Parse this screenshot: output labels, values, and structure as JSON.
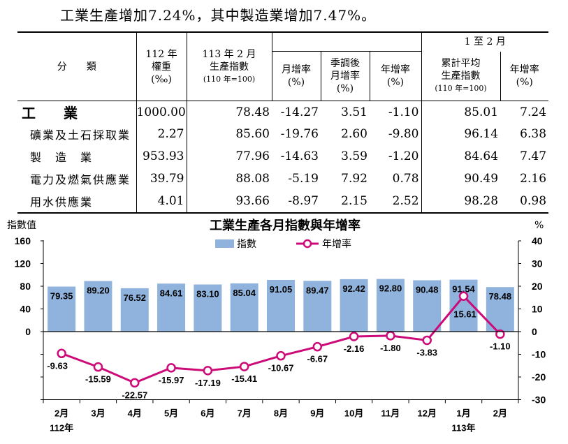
{
  "headline": "工業生產增加7.24%，其中製造業增加7.47%。",
  "table": {
    "header": {
      "category": "分　　類",
      "weight_line1": "112 年",
      "weight_line2": "權重",
      "weight_line3": "(‰)",
      "feb_line1": "113 年 2 月",
      "feb_line2": "生產指數",
      "feb_line3": "(110 年=100)",
      "mom_line1": "月增率",
      "mom_line2": "(%)",
      "sa_line1": "季調後",
      "sa_line2": "月增率",
      "sa_line3": "(%)",
      "yoy_line1": "年增率",
      "yoy_line2": "(%)",
      "cum_line1": "1 至 2 月",
      "cum_line2": "累計平均",
      "cum_line3": "生產指數",
      "cum_line4": "(110 年=100)",
      "cumyoy_line1": "年增率",
      "cumyoy_line2": "(%)"
    },
    "rows": [
      {
        "category": "工　　業",
        "weight": "1000.00",
        "index": "78.48",
        "mom": "-14.27",
        "sa_mom": "3.51",
        "yoy": "-1.10",
        "cum_index": "85.01",
        "cum_yoy": "7.24"
      },
      {
        "category": "礦業及土石採取業",
        "weight": "2.27",
        "index": "85.60",
        "mom": "-19.76",
        "sa_mom": "2.60",
        "yoy": "-9.80",
        "cum_index": "96.14",
        "cum_yoy": "6.38"
      },
      {
        "category": "製　造　業",
        "weight": "953.93",
        "index": "77.96",
        "mom": "-14.63",
        "sa_mom": "3.59",
        "yoy": "-1.20",
        "cum_index": "84.64",
        "cum_yoy": "7.47"
      },
      {
        "category": "電力及燃氣供應業",
        "weight": "39.79",
        "index": "88.08",
        "mom": "-5.19",
        "sa_mom": "7.92",
        "yoy": "0.78",
        "cum_index": "90.49",
        "cum_yoy": "2.16"
      },
      {
        "category": "用水供應業",
        "weight": "4.01",
        "index": "93.66",
        "mom": "-8.97",
        "sa_mom": "2.15",
        "yoy": "2.52",
        "cum_index": "98.28",
        "cum_yoy": "0.98"
      }
    ]
  },
  "chart_data": {
    "type": "bar",
    "title": "工業生產各月指數與年增率",
    "ylabel_left": "指數值",
    "ylabel_right": "%",
    "categories": [
      "2月",
      "3月",
      "4月",
      "5月",
      "6月",
      "7月",
      "8月",
      "9月",
      "10月",
      "11月",
      "12月",
      "1月",
      "2月"
    ],
    "year_labels": [
      {
        "index": 0,
        "label": "112年"
      },
      {
        "index": 11,
        "label": "113年"
      }
    ],
    "left_axis": {
      "ticks": [
        0,
        40,
        80,
        120,
        160
      ]
    },
    "right_axis": {
      "ylim": [
        -30,
        40
      ],
      "ticks": [
        -30,
        -20,
        -10,
        0,
        10,
        20,
        30,
        40
      ]
    },
    "legend": {
      "position": "top-center"
    },
    "series": [
      {
        "name": "指數",
        "type": "bar",
        "axis": "left",
        "color": "#8fb3dc",
        "values": [
          79.35,
          89.2,
          76.52,
          84.61,
          83.1,
          85.04,
          91.05,
          89.47,
          92.42,
          92.8,
          90.48,
          91.54,
          78.48
        ],
        "labels": [
          "79.35",
          "89.20",
          "76.52",
          "84.61",
          "83.10",
          "85.04",
          "91.05",
          "89.47",
          "92.42",
          "92.80",
          "90.48",
          "91.54",
          "78.48"
        ]
      },
      {
        "name": "年增率",
        "type": "line",
        "axis": "right",
        "color": "#cc0a78",
        "values": [
          -9.63,
          -15.59,
          -22.57,
          -15.97,
          -17.19,
          -15.41,
          -10.67,
          -6.67,
          -2.16,
          -1.8,
          -3.83,
          15.61,
          -1.1
        ],
        "labels": [
          "-9.63",
          "-15.59",
          "-22.57",
          "-15.97",
          "-17.19",
          "-15.41",
          "-10.67",
          "-6.67",
          "-2.16",
          "-1.80",
          "-3.83",
          "15.61",
          "-1.10"
        ]
      }
    ]
  }
}
